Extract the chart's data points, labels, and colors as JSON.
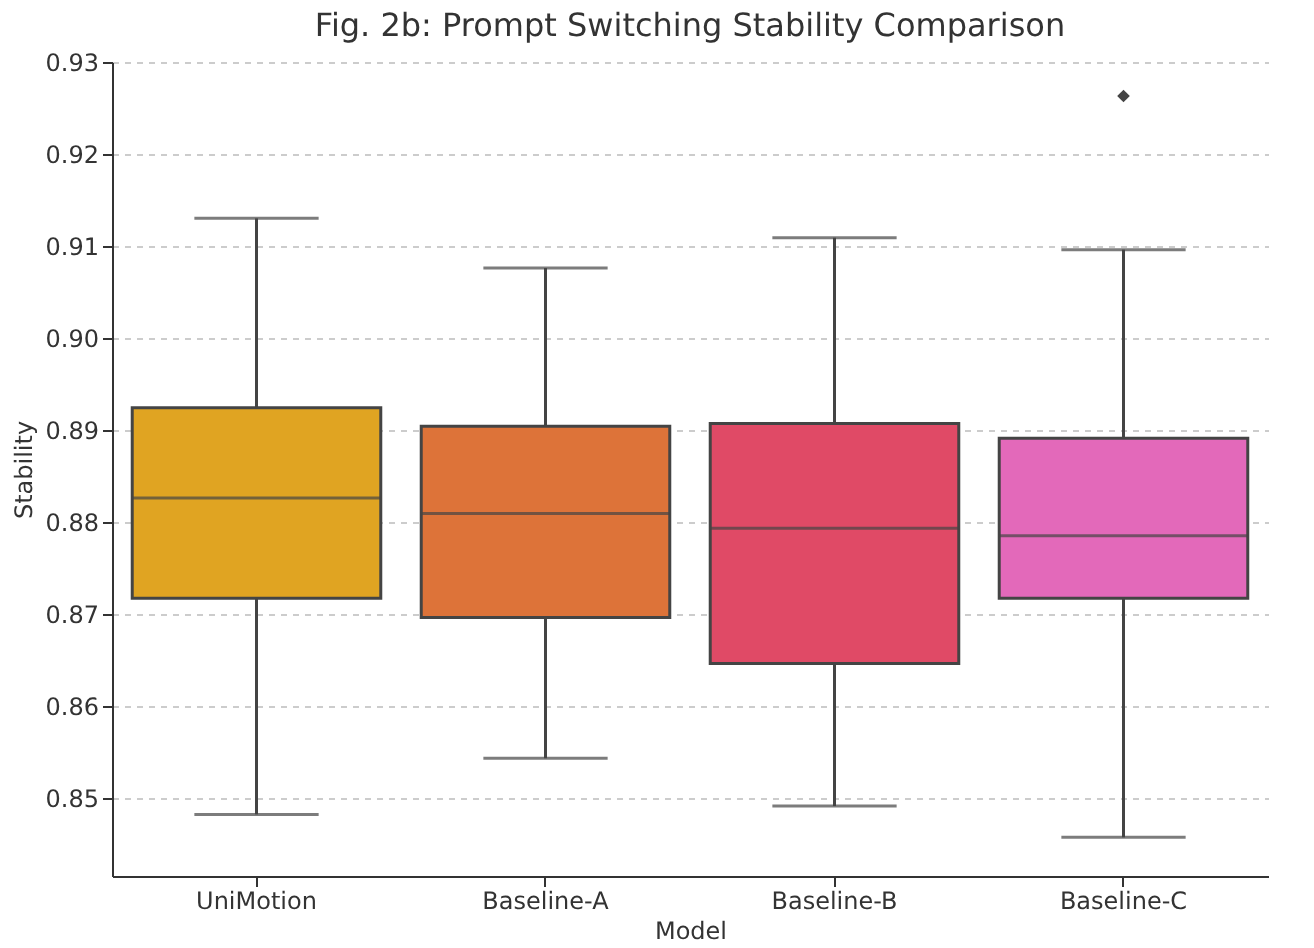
{
  "chart_data": {
    "type": "box",
    "title": "Fig. 2b: Prompt Switching Stability Comparison",
    "xlabel": "Model",
    "ylabel": "Stability",
    "categories": [
      "UniMotion",
      "Baseline-A",
      "Baseline-B",
      "Baseline-C"
    ],
    "colors": [
      "#e0a422",
      "#dd7339",
      "#e04a66",
      "#e369ba"
    ],
    "boxes": [
      {
        "low": 0.8482,
        "q1": 0.8717,
        "median": 0.8826,
        "q3": 0.8924,
        "high": 0.913
      },
      {
        "low": 0.8543,
        "q1": 0.8696,
        "median": 0.8809,
        "q3": 0.8904,
        "high": 0.9076
      },
      {
        "low": 0.8491,
        "q1": 0.8646,
        "median": 0.8793,
        "q3": 0.8907,
        "high": 0.9109
      },
      {
        "low": 0.8457,
        "q1": 0.8717,
        "median": 0.8785,
        "q3": 0.8891,
        "high": 0.9096,
        "outliers": [
          0.9263
        ]
      }
    ],
    "ylim": [
      0.8415,
      0.93
    ],
    "yticks": [
      0.85,
      0.86,
      0.87,
      0.88,
      0.89,
      {
        "value": 0.9,
        "label": "0.90"
      },
      0.91,
      0.92,
      0.93
    ],
    "grid": "y"
  }
}
